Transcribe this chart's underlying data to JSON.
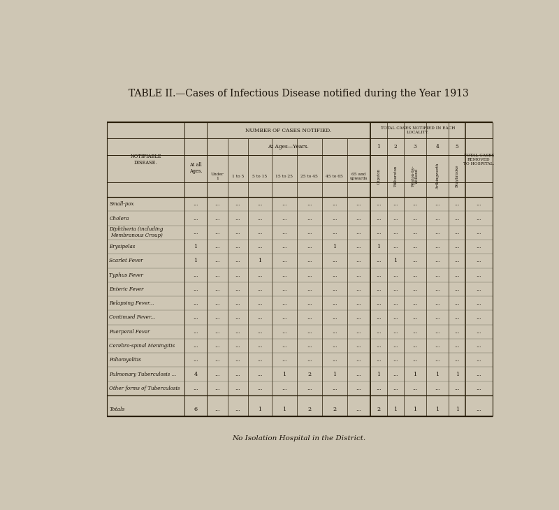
{
  "title": "TABLE II.—Cases of Infectious Disease notified during the Year 1913",
  "subtitle": "No Isolation Hospital in the District.",
  "bg_color": "#cec6b4",
  "text_color": "#1a1208",
  "header_num_cases": "NUMBER OF CASES NOTIFIED.",
  "header_total_loc": "TOTAL CASES NOTIFIED IN EACH\nLOCALITY.",
  "header_total_hosp": "TOTAL CASES\nREMOVED\nTO HOSPITAL.",
  "col_notifiable": "NOTIFIABLE\nDISEASE.",
  "col_at_all_ages": "At all\nAges.",
  "col_ages_header": "At Ages—Years.",
  "age_cols": [
    "Under\n1",
    "1 to 5",
    "5 to 15",
    "15 to 25",
    "25 to 45",
    "45 to 65",
    "65 and\nupwards"
  ],
  "locality_nums": [
    "1",
    "2",
    "3",
    "4",
    "5"
  ],
  "locality_names": [
    "Clipston",
    "Wilbarston",
    "Weston-by-\nWelland",
    "Arthingworth",
    "Braybrooke"
  ],
  "diseases": [
    "Small-pox",
    "Cholera",
    "Diphtheria (including\nMembranous Croup)",
    "Erysipelas",
    "Scarlet Fever",
    "Typhus Fever",
    "Enteric Fever",
    "Relapsing Fever...",
    "Continued Fever...",
    "Puerperal Fever",
    "Cerebro-spinal Meningitis",
    "Poliomyelitis",
    "Pulmonary Tuberculosis ...",
    "Other forms of Tuberculosis"
  ],
  "at_all_ages": [
    "...",
    "...",
    "...",
    "1",
    "1",
    "...",
    "...",
    "...",
    "...",
    "...",
    "...",
    "...",
    "4",
    "..."
  ],
  "under1": [
    "...",
    "...",
    "...",
    "...",
    "...",
    "...",
    "...",
    "...",
    "...",
    "...",
    "...",
    "...",
    "...",
    "..."
  ],
  "1to5": [
    "...",
    "...",
    "...",
    "...",
    "...",
    "...",
    "...",
    "...",
    "...",
    "...",
    "...",
    "...",
    "...",
    "..."
  ],
  "5to15": [
    "...",
    "...",
    "...",
    "...",
    "1",
    "...",
    "...",
    "...",
    "...",
    "...",
    "...",
    "...",
    "...",
    "..."
  ],
  "15to25": [
    "...",
    "...",
    "...",
    "...",
    "...",
    "...",
    "...",
    "...",
    "...",
    "...",
    "...",
    "...",
    "1",
    "..."
  ],
  "25to45": [
    "...",
    "...",
    "...",
    "...",
    "...",
    "...",
    "...",
    "...",
    "...",
    "...",
    "...",
    "...",
    "2",
    "..."
  ],
  "45to65": [
    "...",
    "...",
    "...",
    "1",
    "...",
    "...",
    "...",
    "...",
    "...",
    "...",
    "...",
    "...",
    "1",
    "..."
  ],
  "65up": [
    "...",
    "...",
    "...",
    "...",
    "...",
    "...",
    "...",
    "...",
    "...",
    "...",
    "...",
    "...",
    "...",
    "..."
  ],
  "loc1": [
    "...",
    "...",
    "...",
    "1",
    "...",
    "...",
    "...",
    "...",
    "...",
    "...",
    "...",
    "...",
    "1",
    "..."
  ],
  "loc2": [
    "...",
    "...",
    "...",
    "...",
    "1",
    "...",
    "...",
    "...",
    "...",
    "...",
    "...",
    "...",
    "...",
    "..."
  ],
  "loc3": [
    "...",
    "...",
    "...",
    "...",
    "...",
    "...",
    "...",
    "...",
    "...",
    "...",
    "...",
    "...",
    "1",
    "..."
  ],
  "loc4": [
    "...",
    "...",
    "...",
    "...",
    "...",
    "...",
    "...",
    "...",
    "...",
    "...",
    "...",
    "...",
    "1",
    "..."
  ],
  "loc5": [
    "...",
    "...",
    "...",
    "...",
    "...",
    "...",
    "...",
    "...",
    "...",
    "...",
    "...",
    "...",
    "1",
    "..."
  ],
  "hospital": [
    "...",
    "...",
    "...",
    "...",
    "...",
    "...",
    "...",
    "...",
    "...",
    "...",
    "...",
    "...",
    "...",
    "..."
  ],
  "totals_row": {
    "label": "Totals",
    "at_all_ages": "6",
    "under1": "...",
    "1to5": "...",
    "5to15": "1",
    "15to25": "1",
    "25to45": "2",
    "45to65": "2",
    "65up": "...",
    "loc1": "2",
    "loc2": "1",
    "loc3": "1",
    "loc4": "1",
    "loc5": "1",
    "hospital": "..."
  }
}
